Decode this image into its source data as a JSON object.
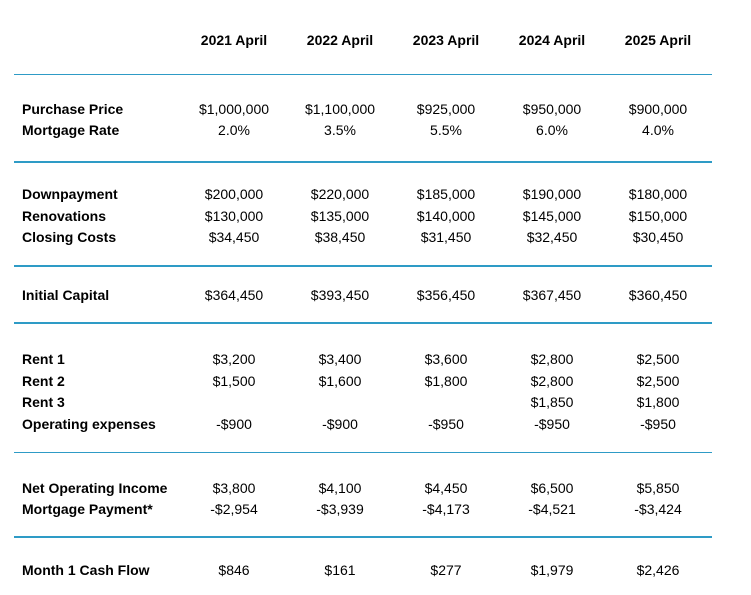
{
  "table": {
    "divider_color": "#2E9BC6",
    "text_color": "#000000",
    "background_color": "#ffffff",
    "columns": [
      "2021 April",
      "2022 April",
      "2023 April",
      "2024 April",
      "2025 April"
    ],
    "sections": [
      {
        "name": "price-and-rate",
        "rows": [
          {
            "label": "Purchase Price",
            "values": [
              "$1,000,000",
              "$1,100,000",
              "$925,000",
              "$950,000",
              "$900,000"
            ]
          },
          {
            "label": "Mortgage Rate",
            "values": [
              "2.0%",
              "3.5%",
              "5.5%",
              "6.0%",
              "4.0%"
            ]
          }
        ]
      },
      {
        "name": "upfront-costs",
        "rows": [
          {
            "label": "Downpayment",
            "values": [
              "$200,000",
              "$220,000",
              "$185,000",
              "$190,000",
              "$180,000"
            ]
          },
          {
            "label": "Renovations",
            "values": [
              "$130,000",
              "$135,000",
              "$140,000",
              "$145,000",
              "$150,000"
            ]
          },
          {
            "label": "Closing Costs",
            "values": [
              "$34,450",
              "$38,450",
              "$31,450",
              "$32,450",
              "$30,450"
            ]
          }
        ]
      },
      {
        "name": "initial-capital",
        "rows": [
          {
            "label": "Initial Capital",
            "values": [
              "$364,450",
              "$393,450",
              "$356,450",
              "$367,450",
              "$360,450"
            ]
          }
        ]
      },
      {
        "name": "income-and-expenses",
        "rows": [
          {
            "label": "Rent 1",
            "values": [
              "$3,200",
              "$3,400",
              "$3,600",
              "$2,800",
              "$2,500"
            ]
          },
          {
            "label": "Rent 2",
            "values": [
              "$1,500",
              "$1,600",
              "$1,800",
              "$2,800",
              "$2,500"
            ]
          },
          {
            "label": "Rent 3",
            "values": [
              "",
              "",
              "",
              "$1,850",
              "$1,800"
            ]
          },
          {
            "label": "Operating expenses",
            "values": [
              "-$900",
              "-$900",
              "-$950",
              "-$950",
              "-$950"
            ]
          }
        ]
      },
      {
        "name": "operating-results",
        "rows": [
          {
            "label": "Net Operating Income",
            "values": [
              "$3,800",
              "$4,100",
              "$4,450",
              "$6,500",
              "$5,850"
            ]
          },
          {
            "label": "Mortgage Payment*",
            "values": [
              "-$2,954",
              "-$3,939",
              "-$4,173",
              "-$4,521",
              "-$3,424"
            ]
          }
        ]
      },
      {
        "name": "cash-flow",
        "rows": [
          {
            "label": "Month 1 Cash Flow",
            "values": [
              "$846",
              "$161",
              "$277",
              "$1,979",
              "$2,426"
            ]
          }
        ]
      }
    ]
  }
}
